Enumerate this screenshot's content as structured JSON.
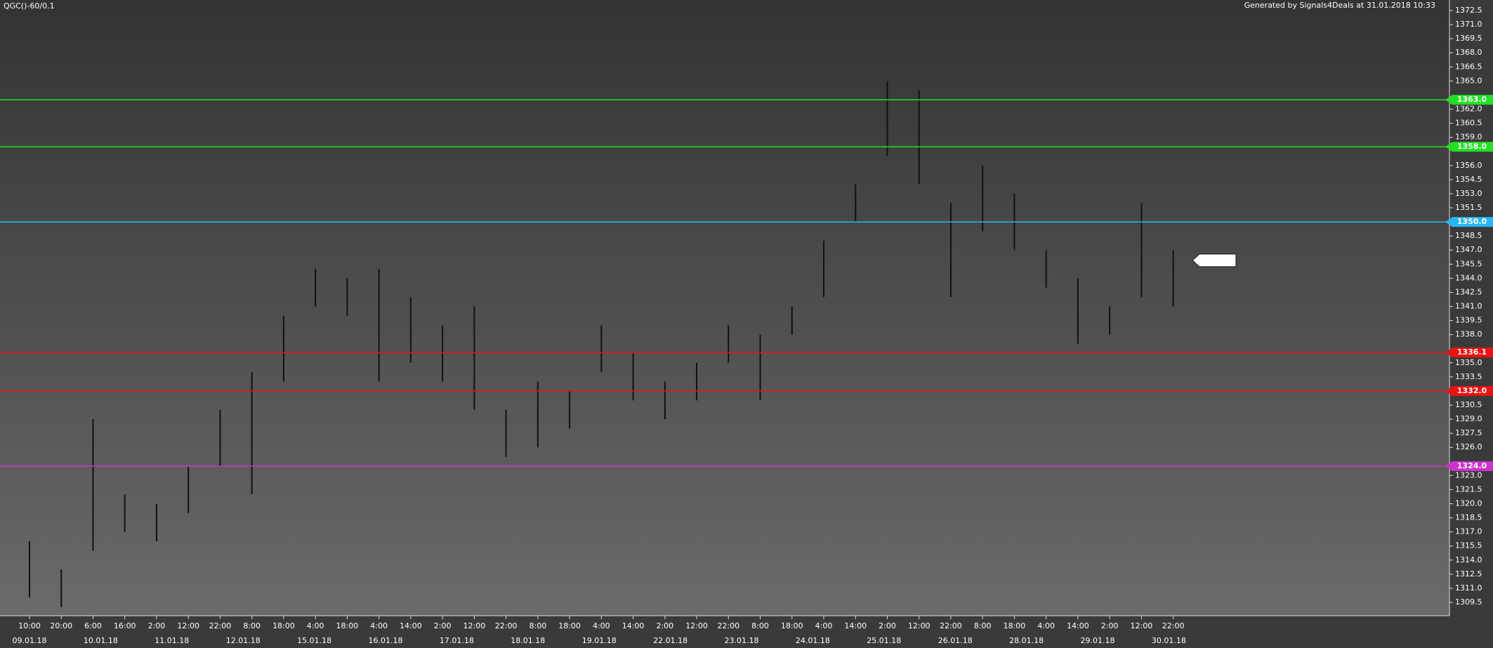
{
  "chart_data": {
    "type": "range",
    "title": "QGC()-60/0.1",
    "subtitle": "Generated by Signals4Deals at 31.01.2018 10:33",
    "categories": [
      "10:00",
      "20:00",
      "6:00",
      "16:00",
      "2:00",
      "12:00",
      "22:00",
      "8:00",
      "18:00",
      "4:00",
      "18:00",
      "4:00",
      "14:00",
      "2:00",
      "12:00",
      "22:00",
      "8:00",
      "18:00",
      "4:00",
      "14:00",
      "2:00",
      "12:00",
      "22:00",
      "8:00",
      "18:00",
      "4:00",
      "14:00",
      "2:00",
      "12:00",
      "22:00",
      "8:00",
      "18:00",
      "4:00",
      "14:00",
      "2:00",
      "12:00",
      "22:00"
    ],
    "dates": [
      "09.01.18",
      "10.01.18",
      "11.01.18",
      "12.01.18",
      "15.01.18",
      "16.01.18",
      "17.01.18",
      "18.01.18",
      "19.01.18",
      "22.01.18",
      "23.01.18",
      "24.01.18",
      "25.01.18",
      "26.01.18",
      "28.01.18",
      "29.01.18",
      "30.01.18"
    ],
    "high": [
      1316,
      1313,
      1329,
      1321,
      1320,
      1324,
      1330,
      1334,
      1340,
      1345,
      1344,
      1345,
      1342,
      1339,
      1341,
      1330,
      1333,
      1332,
      1339,
      1336,
      1333,
      1335,
      1339,
      1338,
      1341,
      1348,
      1354,
      1365,
      1364,
      1352,
      1356,
      1353,
      1347,
      1344,
      1341,
      1352,
      1347
    ],
    "low": [
      1310,
      1309,
      1315,
      1317,
      1316,
      1319,
      1324,
      1321,
      1333,
      1341,
      1340,
      1333,
      1335,
      1333,
      1330,
      1325,
      1326,
      1328,
      1334,
      1331,
      1329,
      1331,
      1335,
      1331,
      1338,
      1342,
      1350,
      1357,
      1354,
      1342,
      1349,
      1347,
      1343,
      1337,
      1338,
      1342,
      1341
    ],
    "color": "#111111",
    "last": 1345.9,
    "levels": [
      {
        "price": {
          "value": 1363,
          "label": "1363.0"
        },
        "color": "#22e022"
      },
      {
        "price": {
          "value": 1358,
          "label": "1358.0"
        },
        "color": "#22e022"
      },
      {
        "price": {
          "value": 1350,
          "label": "1350.0"
        },
        "color": "#29b6f6"
      },
      {
        "price": 1336.1,
        "color": "#ee1111"
      },
      {
        "price": {
          "value": 1332,
          "label": "1332.0"
        },
        "color": "#ee1111"
      },
      {
        "price": {
          "value": 1324,
          "label": "1324.0"
        },
        "color": "#cc33cc"
      }
    ],
    "ylim": [
      1309.5,
      1372.5
    ],
    "yticks": [
      1372.5,
      {
        "value": 1371,
        "label": "1371.0"
      },
      1369.5,
      {
        "value": 1368,
        "label": "1368.0"
      },
      1366.5,
      {
        "value": 1365,
        "label": "1365.0"
      },
      {
        "value": 1362,
        "label": "1362.0"
      },
      1360.5,
      {
        "value": 1359,
        "label": "1359.0"
      },
      {
        "value": 1356,
        "label": "1356.0"
      },
      1354.5,
      {
        "value": 1353,
        "label": "1353.0"
      },
      1351.5,
      1348.5,
      {
        "value": 1347,
        "label": "1347.0"
      },
      1345.5,
      {
        "value": 1344,
        "label": "1344.0"
      },
      1342.5,
      {
        "value": 1341,
        "label": "1341.0"
      },
      1339.5,
      {
        "value": 1338,
        "label": "1338.0"
      },
      {
        "value": 1335,
        "label": "1335.0"
      },
      1333.5,
      1330.5,
      {
        "value": 1329,
        "label": "1329.0"
      },
      1327.5,
      {
        "value": 1326,
        "label": "1326.0"
      },
      {
        "value": 1323,
        "label": "1323.0"
      },
      1321.5,
      {
        "value": 1320,
        "label": "1320.0"
      },
      1318.5,
      {
        "value": 1317,
        "label": "1317.0"
      },
      1315.5,
      {
        "value": 1314,
        "label": "1314.0"
      },
      1312.5,
      {
        "value": 1311,
        "label": "1311.0"
      },
      1309.5
    ]
  }
}
